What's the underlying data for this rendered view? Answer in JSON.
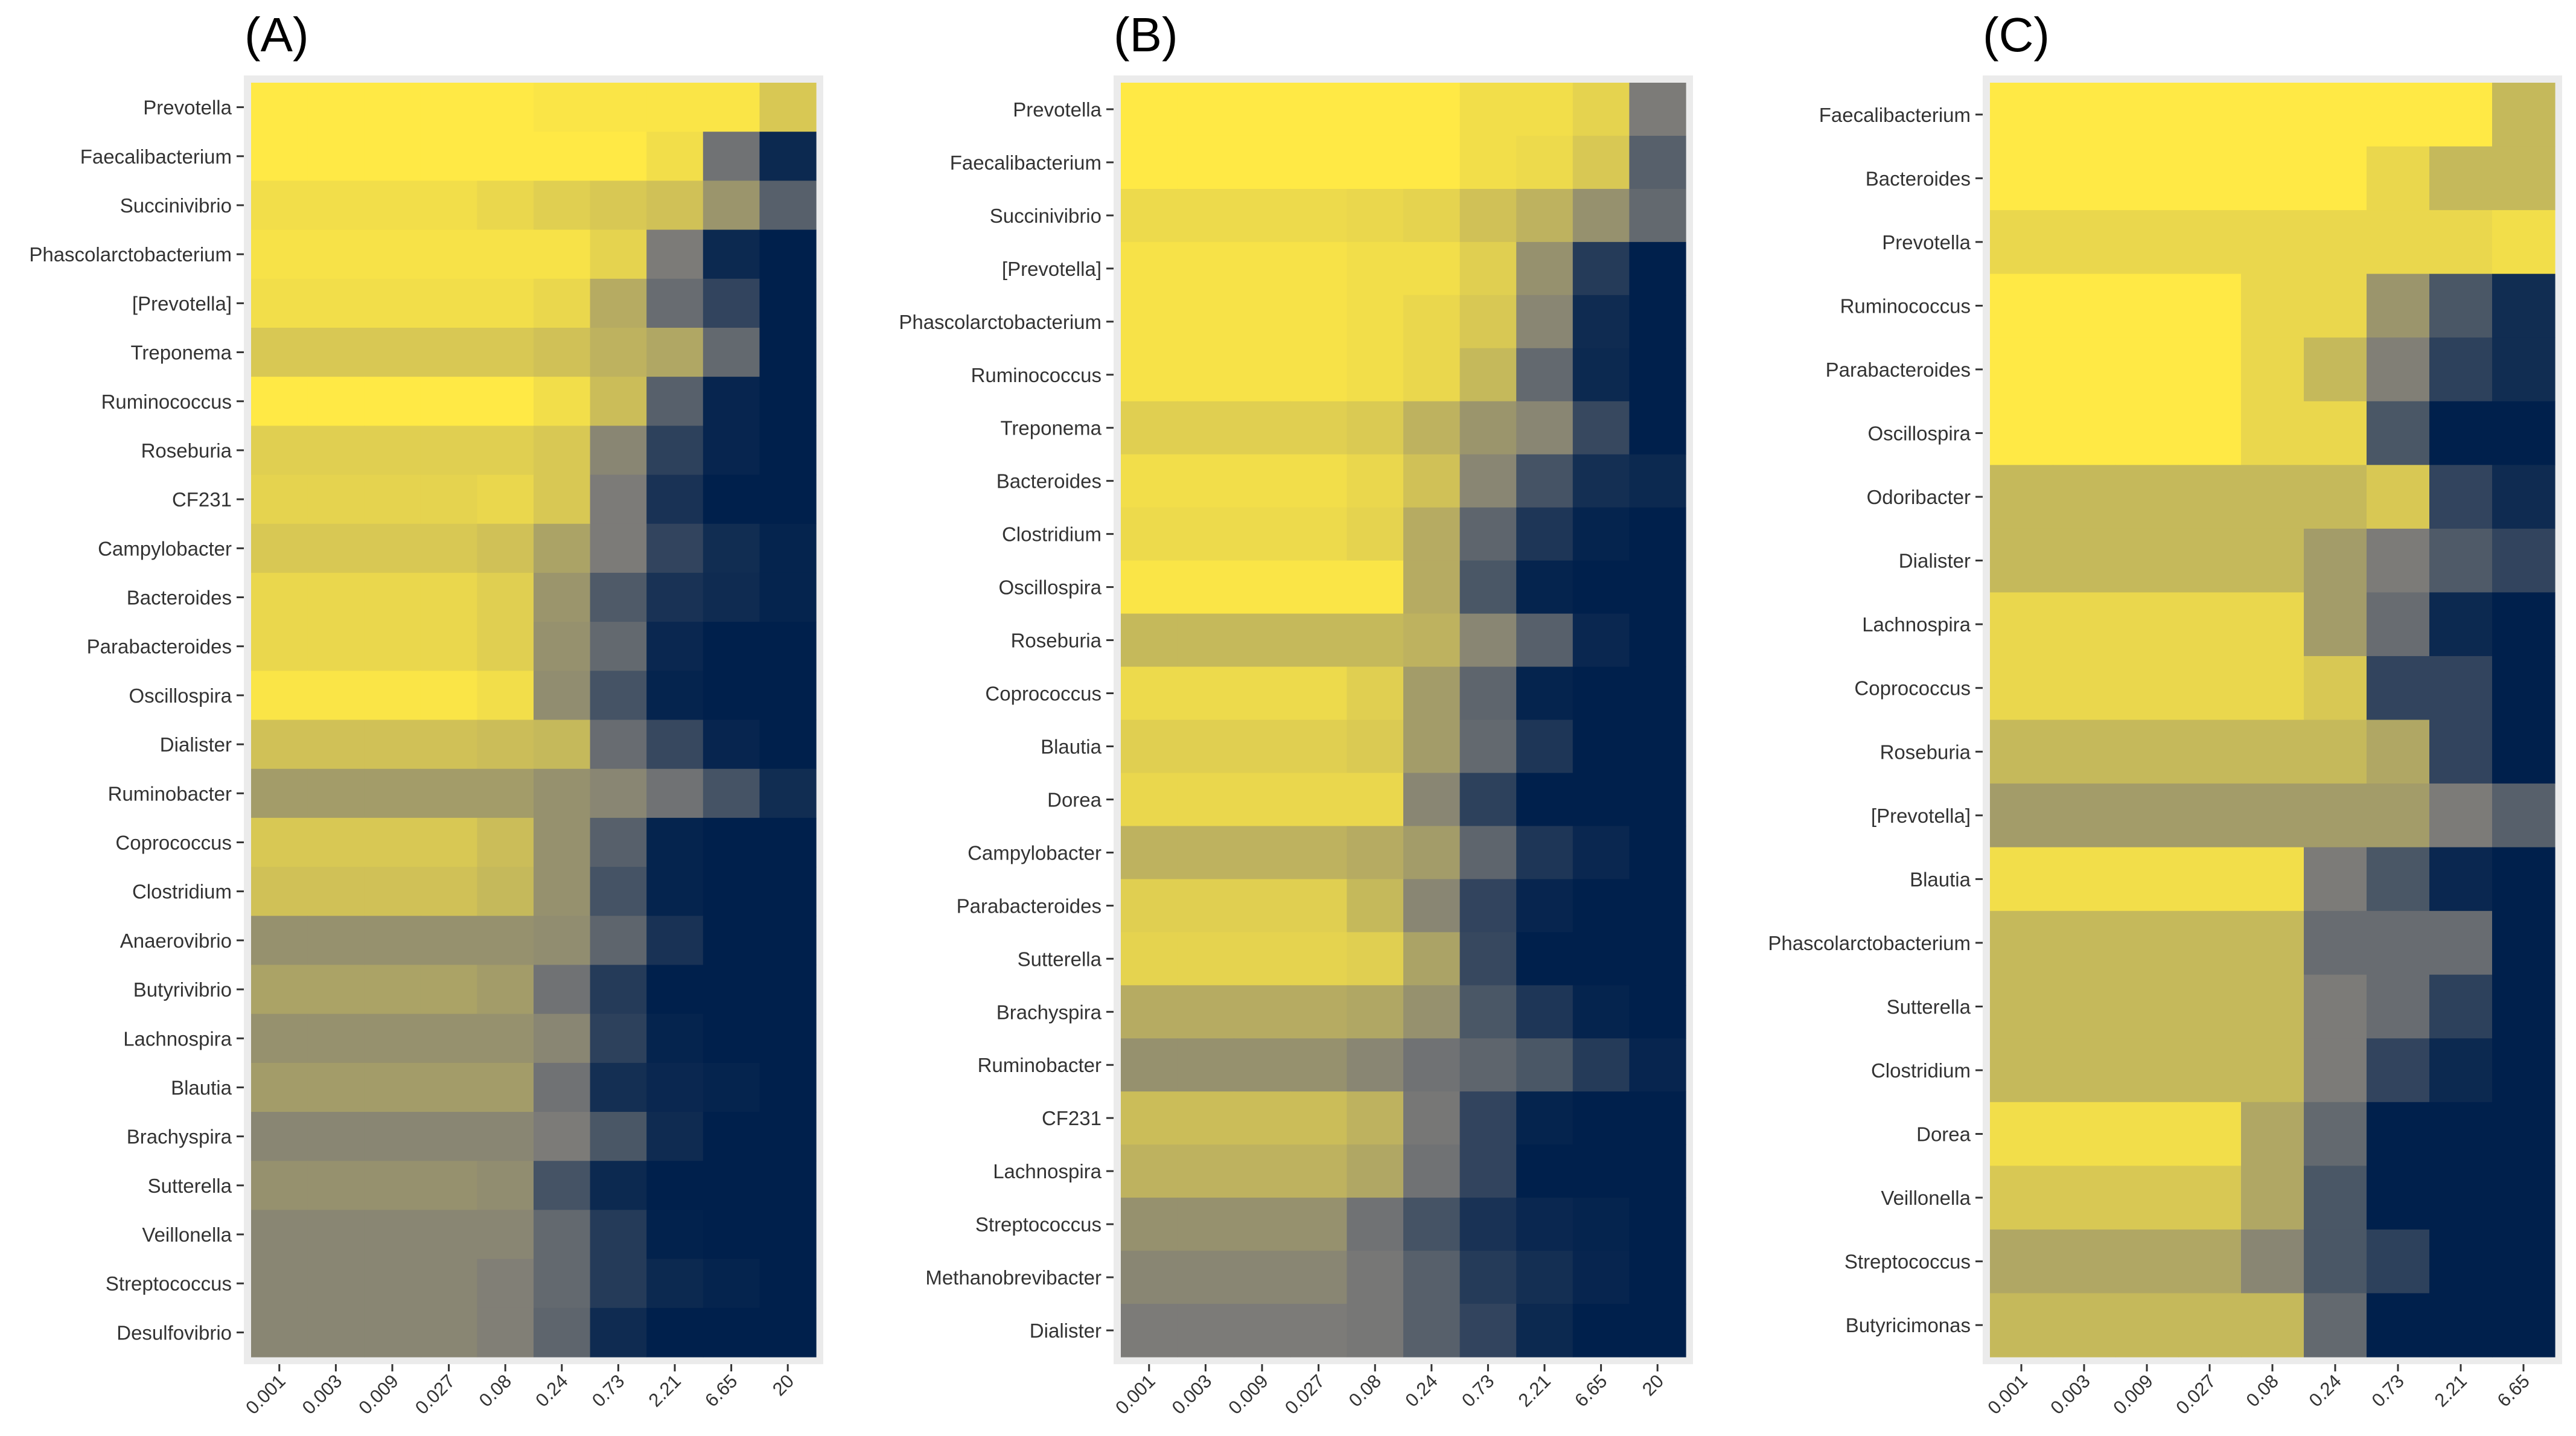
{
  "chart_data": [
    {
      "type": "heatmap",
      "panel_label": "(A)",
      "x": [
        "0.001",
        "0.003",
        "0.009",
        "0.027",
        "0.08",
        "0.24",
        "0.73",
        "2.21",
        "6.65",
        "20"
      ],
      "y": [
        "Prevotella",
        "Faecalibacterium",
        "Succinivibrio",
        "Phascolarctobacterium",
        "[Prevotella]",
        "Treponema",
        "Ruminococcus",
        "Roseburia",
        "CF231",
        "Campylobacter",
        "Bacteroides",
        "Parabacteroides",
        "Oscillospira",
        "Dialister",
        "Ruminobacter",
        "Coprococcus",
        "Clostridium",
        "Anaerovibrio",
        "Butyrivibrio",
        "Lachnospira",
        "Blautia",
        "Brachyspira",
        "Sutterella",
        "Veillonella",
        "Streptococcus",
        "Desulfovibrio"
      ],
      "values": [
        [
          1.0,
          1.0,
          1.0,
          1.0,
          1.0,
          0.98,
          0.98,
          0.98,
          0.98,
          0.85
        ],
        [
          1.0,
          1.0,
          1.0,
          1.0,
          1.0,
          1.0,
          1.0,
          0.95,
          0.45,
          0.05
        ],
        [
          0.95,
          0.95,
          0.95,
          0.95,
          0.92,
          0.88,
          0.85,
          0.82,
          0.62,
          0.35
        ],
        [
          0.97,
          0.97,
          0.97,
          0.97,
          0.97,
          0.97,
          0.9,
          0.5,
          0.05,
          0.0
        ],
        [
          0.95,
          0.95,
          0.95,
          0.95,
          0.95,
          0.92,
          0.72,
          0.42,
          0.2,
          0.0
        ],
        [
          0.85,
          0.85,
          0.85,
          0.85,
          0.85,
          0.82,
          0.75,
          0.7,
          0.4,
          0.0
        ],
        [
          1.0,
          1.0,
          1.0,
          1.0,
          1.0,
          0.95,
          0.8,
          0.35,
          0.03,
          0.0
        ],
        [
          0.88,
          0.88,
          0.88,
          0.88,
          0.88,
          0.85,
          0.55,
          0.18,
          0.03,
          0.0
        ],
        [
          0.9,
          0.9,
          0.9,
          0.9,
          0.92,
          0.85,
          0.5,
          0.1,
          0.0,
          0.0
        ],
        [
          0.85,
          0.85,
          0.85,
          0.85,
          0.82,
          0.68,
          0.5,
          0.2,
          0.07,
          0.02
        ],
        [
          0.92,
          0.92,
          0.92,
          0.92,
          0.88,
          0.62,
          0.32,
          0.1,
          0.06,
          0.02
        ],
        [
          0.92,
          0.92,
          0.92,
          0.92,
          0.88,
          0.6,
          0.4,
          0.04,
          0.0,
          0.0
        ],
        [
          0.98,
          0.98,
          0.98,
          0.98,
          0.95,
          0.58,
          0.28,
          0.02,
          0.0,
          0.0
        ],
        [
          0.82,
          0.82,
          0.82,
          0.82,
          0.8,
          0.78,
          0.42,
          0.22,
          0.03,
          0.0
        ],
        [
          0.65,
          0.65,
          0.65,
          0.65,
          0.65,
          0.6,
          0.55,
          0.45,
          0.28,
          0.07
        ],
        [
          0.85,
          0.85,
          0.85,
          0.85,
          0.8,
          0.6,
          0.35,
          0.02,
          0.0,
          0.0
        ],
        [
          0.82,
          0.82,
          0.82,
          0.82,
          0.78,
          0.6,
          0.28,
          0.02,
          0.0,
          0.0
        ],
        [
          0.6,
          0.6,
          0.6,
          0.6,
          0.6,
          0.58,
          0.38,
          0.1,
          0.0,
          0.0
        ],
        [
          0.68,
          0.68,
          0.68,
          0.68,
          0.65,
          0.45,
          0.15,
          0.0,
          0.0,
          0.0
        ],
        [
          0.6,
          0.6,
          0.6,
          0.6,
          0.6,
          0.55,
          0.18,
          0.02,
          0.0,
          0.0
        ],
        [
          0.65,
          0.65,
          0.65,
          0.65,
          0.65,
          0.45,
          0.08,
          0.04,
          0.02,
          0.0
        ],
        [
          0.55,
          0.55,
          0.55,
          0.55,
          0.55,
          0.5,
          0.3,
          0.06,
          0.0,
          0.0
        ],
        [
          0.6,
          0.6,
          0.6,
          0.6,
          0.58,
          0.28,
          0.05,
          0.0,
          0.0,
          0.0
        ],
        [
          0.55,
          0.55,
          0.55,
          0.55,
          0.55,
          0.4,
          0.15,
          0.01,
          0.0,
          0.0
        ],
        [
          0.55,
          0.55,
          0.55,
          0.55,
          0.52,
          0.4,
          0.15,
          0.05,
          0.02,
          0.0
        ],
        [
          0.55,
          0.55,
          0.55,
          0.55,
          0.52,
          0.38,
          0.06,
          0.0,
          0.0,
          0.0
        ]
      ],
      "value_scale": "relative (0 = dark blue, 1 = yellow)",
      "title": "",
      "xlabel": "",
      "ylabel": ""
    },
    {
      "type": "heatmap",
      "panel_label": "(B)",
      "x": [
        "0.001",
        "0.003",
        "0.009",
        "0.027",
        "0.08",
        "0.24",
        "0.73",
        "2.21",
        "6.65",
        "20"
      ],
      "y": [
        "Prevotella",
        "Faecalibacterium",
        "Succinivibrio",
        "[Prevotella]",
        "Phascolarctobacterium",
        "Ruminococcus",
        "Treponema",
        "Bacteroides",
        "Clostridium",
        "Oscillospira",
        "Roseburia",
        "Coprococcus",
        "Blautia",
        "Dorea",
        "Campylobacter",
        "Parabacteroides",
        "Sutterella",
        "Brachyspira",
        "Ruminobacter",
        "CF231",
        "Lachnospira",
        "Streptococcus",
        "Methanobrevibacter",
        "Dialister"
      ],
      "values": [
        [
          1.0,
          1.0,
          1.0,
          1.0,
          1.0,
          1.0,
          0.95,
          0.95,
          0.9,
          0.5
        ],
        [
          1.0,
          1.0,
          1.0,
          1.0,
          1.0,
          1.0,
          0.95,
          0.93,
          0.85,
          0.35
        ],
        [
          0.93,
          0.93,
          0.93,
          0.93,
          0.92,
          0.9,
          0.82,
          0.75,
          0.6,
          0.4
        ],
        [
          0.97,
          0.97,
          0.97,
          0.97,
          0.95,
          0.95,
          0.88,
          0.6,
          0.15,
          0.0
        ],
        [
          0.97,
          0.97,
          0.97,
          0.97,
          0.95,
          0.92,
          0.85,
          0.55,
          0.06,
          0.0
        ],
        [
          0.97,
          0.97,
          0.97,
          0.97,
          0.95,
          0.92,
          0.78,
          0.4,
          0.05,
          0.0
        ],
        [
          0.88,
          0.88,
          0.88,
          0.88,
          0.86,
          0.75,
          0.62,
          0.55,
          0.22,
          0.0
        ],
        [
          0.95,
          0.95,
          0.95,
          0.95,
          0.92,
          0.82,
          0.55,
          0.28,
          0.08,
          0.05
        ],
        [
          0.93,
          0.93,
          0.93,
          0.93,
          0.9,
          0.72,
          0.38,
          0.12,
          0.02,
          0.0
        ],
        [
          0.98,
          0.98,
          0.98,
          0.98,
          0.98,
          0.72,
          0.3,
          0.02,
          0.0,
          0.0
        ],
        [
          0.78,
          0.78,
          0.78,
          0.78,
          0.78,
          0.75,
          0.55,
          0.35,
          0.04,
          0.0
        ],
        [
          0.93,
          0.93,
          0.93,
          0.93,
          0.88,
          0.65,
          0.38,
          0.02,
          0.0,
          0.0
        ],
        [
          0.88,
          0.88,
          0.88,
          0.88,
          0.86,
          0.65,
          0.4,
          0.12,
          0.0,
          0.0
        ],
        [
          0.92,
          0.92,
          0.92,
          0.92,
          0.92,
          0.55,
          0.18,
          0.0,
          0.0,
          0.0
        ],
        [
          0.75,
          0.75,
          0.75,
          0.75,
          0.72,
          0.65,
          0.38,
          0.12,
          0.04,
          0.0
        ],
        [
          0.88,
          0.88,
          0.88,
          0.88,
          0.78,
          0.55,
          0.2,
          0.03,
          0.0,
          0.0
        ],
        [
          0.9,
          0.9,
          0.9,
          0.9,
          0.88,
          0.68,
          0.22,
          0.0,
          0.0,
          0.0
        ],
        [
          0.72,
          0.72,
          0.72,
          0.72,
          0.7,
          0.6,
          0.3,
          0.12,
          0.02,
          0.0
        ],
        [
          0.6,
          0.6,
          0.6,
          0.6,
          0.55,
          0.45,
          0.38,
          0.3,
          0.15,
          0.03
        ],
        [
          0.8,
          0.8,
          0.8,
          0.8,
          0.75,
          0.48,
          0.2,
          0.02,
          0.0,
          0.0
        ],
        [
          0.75,
          0.75,
          0.75,
          0.75,
          0.7,
          0.45,
          0.2,
          0.0,
          0.0,
          0.0
        ],
        [
          0.6,
          0.6,
          0.6,
          0.6,
          0.45,
          0.28,
          0.1,
          0.04,
          0.02,
          0.0
        ],
        [
          0.55,
          0.55,
          0.55,
          0.55,
          0.48,
          0.35,
          0.15,
          0.08,
          0.03,
          0.0
        ],
        [
          0.5,
          0.5,
          0.5,
          0.5,
          0.48,
          0.35,
          0.2,
          0.05,
          0.0,
          0.0
        ]
      ],
      "value_scale": "relative (0 = dark blue, 1 = yellow)",
      "title": "",
      "xlabel": "",
      "ylabel": ""
    },
    {
      "type": "heatmap",
      "panel_label": "(C)",
      "x": [
        "0.001",
        "0.003",
        "0.009",
        "0.027",
        "0.08",
        "0.24",
        "0.73",
        "2.21",
        "6.65"
      ],
      "y": [
        "Faecalibacterium",
        "Bacteroides",
        "Prevotella",
        "Ruminococcus",
        "Parabacteroides",
        "Oscillospira",
        "Odoribacter",
        "Dialister",
        "Lachnospira",
        "Coprococcus",
        "Roseburia",
        "[Prevotella]",
        "Blautia",
        "Phascolarctobacterium",
        "Sutterella",
        "Clostridium",
        "Dorea",
        "Veillonella",
        "Streptococcus",
        "Butyricimonas"
      ],
      "values": [
        [
          1.0,
          1.0,
          1.0,
          1.0,
          1.0,
          1.0,
          1.0,
          1.0,
          0.78
        ],
        [
          1.0,
          1.0,
          1.0,
          1.0,
          1.0,
          1.0,
          0.92,
          0.78,
          0.78
        ],
        [
          0.92,
          0.92,
          0.92,
          0.92,
          0.92,
          0.92,
          0.92,
          0.92,
          0.95
        ],
        [
          1.0,
          1.0,
          1.0,
          1.0,
          0.92,
          0.92,
          0.62,
          0.3,
          0.07
        ],
        [
          1.0,
          1.0,
          1.0,
          1.0,
          0.92,
          0.78,
          0.52,
          0.18,
          0.07
        ],
        [
          1.0,
          1.0,
          1.0,
          1.0,
          0.92,
          0.92,
          0.3,
          0.0,
          0.0
        ],
        [
          0.78,
          0.78,
          0.78,
          0.78,
          0.78,
          0.78,
          0.85,
          0.2,
          0.06
        ],
        [
          0.78,
          0.78,
          0.78,
          0.78,
          0.78,
          0.65,
          0.5,
          0.32,
          0.2
        ],
        [
          0.92,
          0.92,
          0.92,
          0.92,
          0.92,
          0.65,
          0.42,
          0.05,
          0.0
        ],
        [
          0.92,
          0.92,
          0.92,
          0.92,
          0.92,
          0.85,
          0.2,
          0.2,
          0.0
        ],
        [
          0.78,
          0.78,
          0.78,
          0.78,
          0.78,
          0.78,
          0.7,
          0.2,
          0.0
        ],
        [
          0.65,
          0.65,
          0.65,
          0.65,
          0.65,
          0.65,
          0.65,
          0.5,
          0.35
        ],
        [
          0.95,
          0.95,
          0.95,
          0.95,
          0.95,
          0.5,
          0.3,
          0.04,
          0.0
        ],
        [
          0.78,
          0.78,
          0.78,
          0.78,
          0.78,
          0.42,
          0.42,
          0.42,
          0.0
        ],
        [
          0.78,
          0.78,
          0.78,
          0.78,
          0.78,
          0.5,
          0.42,
          0.18,
          0.0
        ],
        [
          0.78,
          0.78,
          0.78,
          0.78,
          0.78,
          0.5,
          0.2,
          0.05,
          0.0
        ],
        [
          0.95,
          0.95,
          0.95,
          0.95,
          0.7,
          0.4,
          0.0,
          0.0,
          0.0
        ],
        [
          0.85,
          0.85,
          0.85,
          0.85,
          0.7,
          0.3,
          0.0,
          0.0,
          0.0
        ],
        [
          0.7,
          0.7,
          0.7,
          0.7,
          0.55,
          0.3,
          0.18,
          0.0,
          0.0
        ],
        [
          0.78,
          0.78,
          0.78,
          0.78,
          0.78,
          0.4,
          0.0,
          0.0,
          0.0
        ]
      ],
      "value_scale": "relative (0 = dark blue, 1 = yellow)",
      "title": "",
      "xlabel": "",
      "ylabel": ""
    }
  ],
  "colors": {
    "low": "#00204c",
    "mid": "#7c7b78",
    "high": "#ffe945",
    "panel_background": "#ebebeb",
    "label_text": "#333333",
    "panel_label_text": "#000000"
  }
}
